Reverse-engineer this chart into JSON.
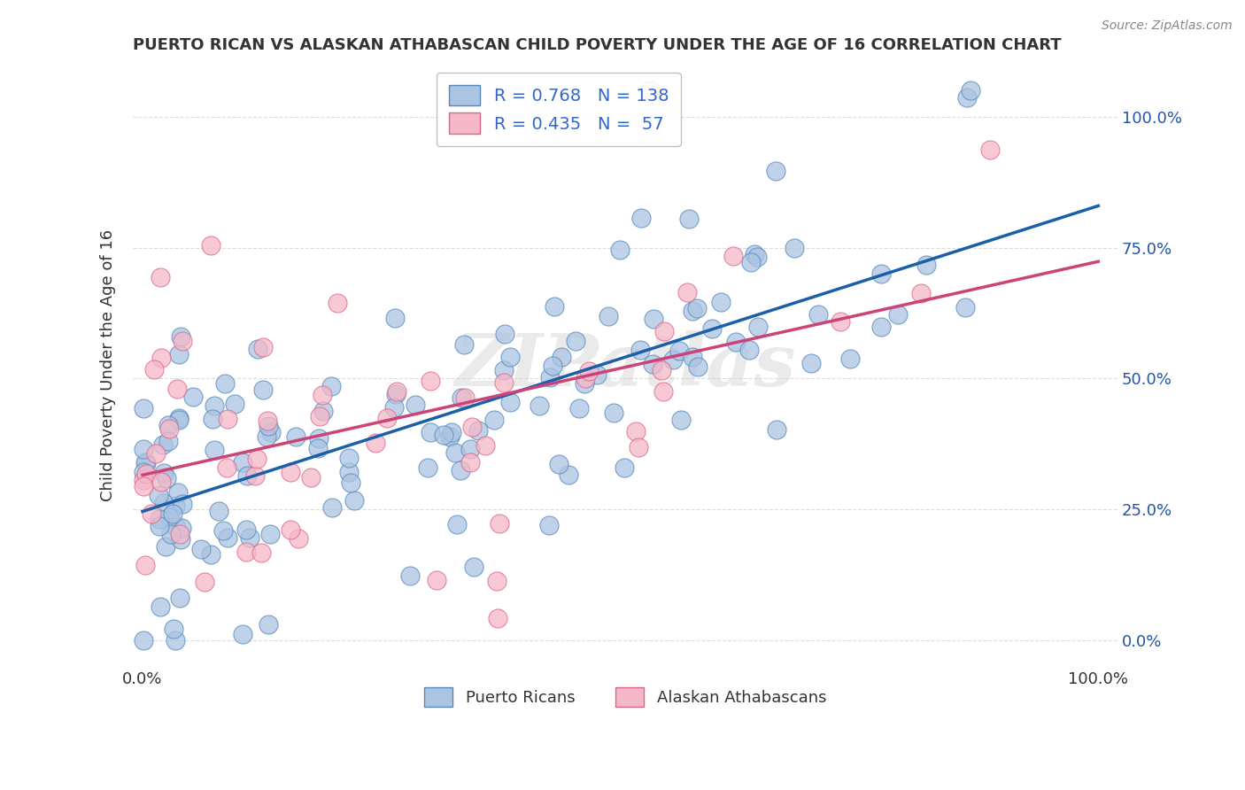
{
  "title": "PUERTO RICAN VS ALASKAN ATHABASCAN CHILD POVERTY UNDER THE AGE OF 16 CORRELATION CHART",
  "source": "Source: ZipAtlas.com",
  "ylabel": "Child Poverty Under the Age of 16",
  "legend_blue_r": "0.768",
  "legend_blue_n": "138",
  "legend_pink_r": "0.435",
  "legend_pink_n": "57",
  "legend_blue_label": "Puerto Ricans",
  "legend_pink_label": "Alaskan Athabascans",
  "blue_face_color": "#aac4e2",
  "pink_face_color": "#f4b8c8",
  "blue_edge_color": "#5588bb",
  "pink_edge_color": "#dd6688",
  "blue_line_color": "#1a5fa8",
  "pink_line_color": "#cc4477",
  "legend_text_color": "#3366cc",
  "background_color": "#ffffff",
  "watermark": "ZIPatlas",
  "grid_color": "#dddddd",
  "title_color": "#333333",
  "tick_color": "#333333",
  "right_tick_color": "#2255aa",
  "source_color": "#888888"
}
